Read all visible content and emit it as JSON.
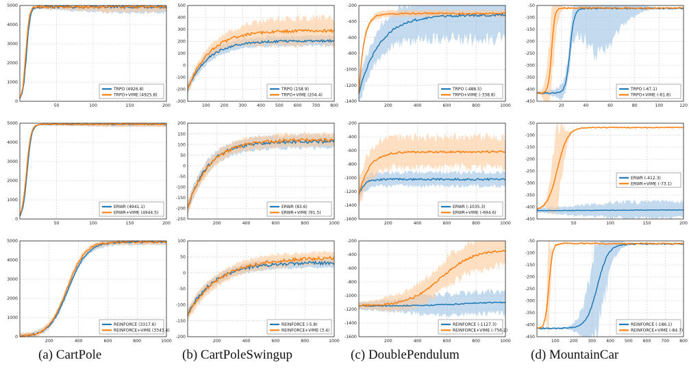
{
  "captions": [
    "(a) CartPole",
    "(b) CartPoleSwingup",
    "(c) DoublePendulum",
    "(d) MountainCar"
  ],
  "style": {
    "base_color": "#1f77b4",
    "vime_color": "#ff7f0e",
    "base_band": "#9cc3e4",
    "vime_band": "#ffc99a"
  },
  "chart_data": [
    {
      "type": "line",
      "panel": "CartPole / TRPO",
      "shape": "sig",
      "ylim": [
        0,
        5000
      ],
      "xlim": [
        0,
        200
      ],
      "yticks": [
        0,
        1000,
        2000,
        3000,
        4000,
        5000
      ],
      "xticks": [
        50,
        100,
        150,
        200
      ],
      "ytick_labels": [
        "0",
        "1000",
        "2000",
        "3000",
        "4000",
        "5000"
      ],
      "xtick_labels": [
        "50",
        "100",
        "150",
        "200"
      ],
      "grid": true,
      "legend": "bottom-right",
      "series": [
        {
          "name": "TRPO (4926.8)",
          "start": 0,
          "end": 4927,
          "mid": 9,
          "width": 2.5,
          "noise": 70,
          "band": 300,
          "band_start": 0.15
        },
        {
          "name": "TRPO+VIME (4925.8)",
          "start": 0,
          "end": 4926,
          "mid": 8,
          "width": 2.3,
          "noise": 70,
          "band": 260,
          "band_start": 0.15
        }
      ]
    },
    {
      "type": "line",
      "panel": "CartPoleSwingup / TRPO",
      "shape": "log",
      "ylim": [
        -300,
        500
      ],
      "xlim": [
        0,
        800
      ],
      "yticks": [
        -300,
        -200,
        -100,
        0,
        100,
        200,
        300,
        400,
        500
      ],
      "xticks": [
        100,
        200,
        300,
        400,
        500,
        600,
        700,
        800
      ],
      "ytick_labels": [
        "-300",
        "-200",
        "-100",
        "0",
        "100",
        "200",
        "300",
        "400",
        "500"
      ],
      "xtick_labels": [
        "100",
        "200",
        "300",
        "400",
        "500",
        "600",
        "700",
        "800"
      ],
      "grid": true,
      "legend": "bottom-right",
      "series": [
        {
          "name": "TRPO (158.9)",
          "start": -200,
          "end": 205,
          "tau": 110,
          "noise": 9,
          "band": 40
        },
        {
          "name": "TRPO+VIME (204.4)",
          "start": -200,
          "end": 290,
          "tau": 120,
          "noise": 12,
          "band": 110,
          "band_start": 0.3
        }
      ]
    },
    {
      "type": "line",
      "panel": "DoublePendulum / TRPO",
      "shape": "log",
      "ylim": [
        -1400,
        -200
      ],
      "xlim": [
        0,
        1000
      ],
      "yticks": [
        -1400,
        -1200,
        -1000,
        -800,
        -600,
        -400,
        -200
      ],
      "xticks": [
        200,
        400,
        600,
        800,
        1000
      ],
      "ytick_labels": [
        "-1400",
        "-1200",
        "-1000",
        "-800",
        "-600",
        "-400",
        "-200"
      ],
      "xtick_labels": [
        "200",
        "400",
        "600",
        "800",
        "1000"
      ],
      "grid": true,
      "legend": "bottom-right",
      "series": [
        {
          "name": "TRPO (-488.5)",
          "start": -1300,
          "end": -320,
          "tau": 140,
          "noise": 15,
          "band": 300,
          "band_start": 0.5
        },
        {
          "name": "TRPO+VIME (-338.8)",
          "start": -1300,
          "end": -300,
          "tau": 35,
          "noise": 10,
          "band": 40
        }
      ]
    },
    {
      "type": "line",
      "panel": "MountainCar / TRPO",
      "shape": "sig",
      "ylim": [
        -450,
        -50
      ],
      "xlim": [
        0,
        120
      ],
      "yticks": [
        -450,
        -400,
        -350,
        -300,
        -250,
        -200,
        -150,
        -100,
        -50
      ],
      "xticks": [
        20,
        40,
        60,
        80,
        100,
        120
      ],
      "ytick_labels": [
        "-450",
        "-400",
        "-350",
        "-300",
        "-250",
        "-200",
        "-150",
        "-100",
        "-50"
      ],
      "xtick_labels": [
        "20",
        "40",
        "60",
        "80",
        "100",
        "120"
      ],
      "grid": true,
      "legend": "bottom-right",
      "series": [
        {
          "name": "TRPO (-67.1)",
          "start": -415,
          "end": -62,
          "mid": 27,
          "width": 1.8,
          "noise": 3,
          "band": 170,
          "band_mid": 50,
          "band_width": 22
        },
        {
          "name": "TRPO+VIME (-61.8)",
          "start": -415,
          "end": -61,
          "mid": 12,
          "width": 1.3,
          "noise": 3,
          "band": 150,
          "band_mid": 12,
          "band_width": 5
        }
      ]
    },
    {
      "type": "line",
      "panel": "CartPole / ERWR",
      "shape": "sig",
      "ylim": [
        0,
        5000
      ],
      "xlim": [
        0,
        200
      ],
      "yticks": [
        0,
        1000,
        2000,
        3000,
        4000,
        5000
      ],
      "xticks": [
        50,
        100,
        150,
        200
      ],
      "ytick_labels": [
        "0",
        "1000",
        "2000",
        "3000",
        "4000",
        "5000"
      ],
      "xtick_labels": [
        "50",
        "100",
        "150",
        "200"
      ],
      "grid": true,
      "legend": "bottom-right",
      "series": [
        {
          "name": "ERWR (4941.1)",
          "start": 0,
          "end": 4941,
          "mid": 10,
          "width": 3,
          "noise": 25,
          "band": 120,
          "band_start": 0.15
        },
        {
          "name": "ERWR+VIME (4944.5)",
          "start": 0,
          "end": 4945,
          "mid": 9,
          "width": 3,
          "noise": 25,
          "band": 120,
          "band_start": 0.15
        }
      ]
    },
    {
      "type": "line",
      "panel": "CartPoleSwingup / ERWR",
      "shape": "log",
      "ylim": [
        -250,
        200
      ],
      "xlim": [
        0,
        1000
      ],
      "yticks": [
        -250,
        -200,
        -150,
        -100,
        -50,
        0,
        50,
        100,
        150,
        200
      ],
      "xticks": [
        200,
        400,
        600,
        800,
        1000
      ],
      "ytick_labels": [
        "-250",
        "-200",
        "-150",
        "-100",
        "-50",
        "0",
        "50",
        "100",
        "150",
        "200"
      ],
      "xtick_labels": [
        "200",
        "400",
        "600",
        "800",
        "1000"
      ],
      "grid": true,
      "legend": "bottom-right",
      "series": [
        {
          "name": "ERWR (83.6)",
          "start": -200,
          "end": 115,
          "tau": 140,
          "noise": 8,
          "band": 30
        },
        {
          "name": "ERWR+VIME (91.5)",
          "start": -200,
          "end": 122,
          "tau": 150,
          "noise": 8,
          "band": 30
        }
      ]
    },
    {
      "type": "line",
      "panel": "DoublePendulum / ERWR",
      "shape": "log",
      "ylim": [
        -1600,
        -200
      ],
      "xlim": [
        0,
        1000
      ],
      "yticks": [
        -1600,
        -1400,
        -1200,
        -1000,
        -800,
        -600,
        -400,
        -200
      ],
      "xticks": [
        200,
        400,
        600,
        800,
        1000
      ],
      "ytick_labels": [
        "-1600",
        "-1400",
        "-1200",
        "-1000",
        "-800",
        "-600",
        "-400",
        "-200"
      ],
      "xtick_labels": [
        "200",
        "400",
        "600",
        "800",
        "1000"
      ],
      "grid": true,
      "legend": "bottom-right",
      "series": [
        {
          "name": "ERWR (-1035.3)",
          "start": -1250,
          "end": -1020,
          "tau": 35,
          "noise": 14,
          "band": 100
        },
        {
          "name": "ERWR+VIME (-694.6)",
          "start": -1250,
          "end": -620,
          "tau": 70,
          "noise": 14,
          "band": 220
        }
      ]
    },
    {
      "type": "line",
      "panel": "MountainCar / ERWR",
      "shape": "sig",
      "ylim": [
        -450,
        -50
      ],
      "xlim": [
        0,
        200
      ],
      "yticks": [
        -450,
        -400,
        -350,
        -300,
        -250,
        -200,
        -150,
        -100,
        -50
      ],
      "xticks": [
        50,
        100,
        150,
        200
      ],
      "ytick_labels": [
        "-450",
        "-400",
        "-350",
        "-300",
        "-250",
        "-200",
        "-150",
        "-100",
        "-50"
      ],
      "xtick_labels": [
        "50",
        "100",
        "150",
        "200"
      ],
      "grid": true,
      "legend": "right",
      "series": [
        {
          "name": "ERWR (-412.3)",
          "start": -415,
          "end": -412,
          "mid": 100,
          "width": 40,
          "noise": 1,
          "band": 35,
          "band_start": 0.25
        },
        {
          "name": "ERWR+VIME (-73.1)",
          "start": -415,
          "end": -68,
          "mid": 28,
          "width": 7,
          "noise": 2,
          "band": 160,
          "band_mid": 28,
          "band_width": 10
        }
      ]
    },
    {
      "type": "line",
      "panel": "CartPole / REINFORCE",
      "shape": "sig",
      "ylim": [
        0,
        5000
      ],
      "xlim": [
        0,
        1000
      ],
      "yticks": [
        0,
        1000,
        2000,
        3000,
        4000,
        5000
      ],
      "xticks": [
        200,
        400,
        600,
        800,
        1000
      ],
      "ytick_labels": [
        "0",
        "1000",
        "2000",
        "3000",
        "4000",
        "5000"
      ],
      "xtick_labels": [
        "200",
        "400",
        "600",
        "800",
        "1000"
      ],
      "grid": true,
      "legend": "bottom-right",
      "series": [
        {
          "name": "REINFORCE (3317.6)",
          "start": 0,
          "end": 4950,
          "mid": 330,
          "width": 65,
          "noise": 55,
          "band": 150
        },
        {
          "name": "REINFORCE+VIME (3343.4)",
          "start": 0,
          "end": 4960,
          "mid": 320,
          "width": 62,
          "noise": 55,
          "band": 150
        }
      ]
    },
    {
      "type": "line",
      "panel": "CartPoleSwingup / REINFORCE",
      "shape": "log",
      "ylim": [
        -200,
        100
      ],
      "xlim": [
        0,
        1000
      ],
      "yticks": [
        -200,
        -150,
        -100,
        -50,
        0,
        50,
        100
      ],
      "xticks": [
        200,
        400,
        600,
        800,
        1000
      ],
      "ytick_labels": [
        "-200",
        "-150",
        "-100",
        "-50",
        "0",
        "50",
        "100"
      ],
      "xtick_labels": [
        "200",
        "400",
        "600",
        "800",
        "1000"
      ],
      "grid": true,
      "legend": "bottom-right",
      "series": [
        {
          "name": "REINFORCE (-5.8)",
          "start": -130,
          "end": 32,
          "tau": 180,
          "noise": 5,
          "band": 14
        },
        {
          "name": "REINFORCE+VIME (3.4)",
          "start": -130,
          "end": 48,
          "tau": 220,
          "noise": 5,
          "band": 20
        }
      ]
    },
    {
      "type": "line",
      "panel": "DoublePendulum / REINFORCE",
      "shape": "sig",
      "ylim": [
        -1600,
        -200
      ],
      "xlim": [
        0,
        1000
      ],
      "yticks": [
        -1600,
        -1400,
        -1200,
        -1000,
        -800,
        -600,
        -400,
        -200
      ],
      "xticks": [
        200,
        400,
        600,
        800,
        1000
      ],
      "ytick_labels": [
        "-1600",
        "-1400",
        "-1200",
        "-1000",
        "-800",
        "-600",
        "-400",
        "-200"
      ],
      "xtick_labels": [
        "200",
        "400",
        "600",
        "800",
        "1000"
      ],
      "grid": true,
      "legend": "bottom-right",
      "series": [
        {
          "name": "REINFORCE (-1127.3)",
          "start": -1150,
          "end": -1090,
          "mid": 700,
          "width": 150,
          "noise": 8,
          "band": 160,
          "band_start": 0.3
        },
        {
          "name": "REINFORCE+VIME (-756.2)",
          "start": -1150,
          "end": -330,
          "mid": 560,
          "width": 110,
          "noise": 15,
          "band": 220,
          "band_start": 0.2
        }
      ]
    },
    {
      "type": "line",
      "panel": "MountainCar / REINFORCE",
      "shape": "sig",
      "ylim": [
        -450,
        -50
      ],
      "xlim": [
        0,
        800
      ],
      "yticks": [
        -450,
        -400,
        -350,
        -300,
        -250,
        -200,
        -150,
        -100,
        -50
      ],
      "xticks": [
        100,
        200,
        300,
        400,
        500,
        600,
        700,
        800
      ],
      "ytick_labels": [
        "-450",
        "-400",
        "-350",
        "-300",
        "-250",
        "-200",
        "-150",
        "-100",
        "-50"
      ],
      "xtick_labels": [
        "100",
        "200",
        "300",
        "400",
        "500",
        "600",
        "700",
        "800"
      ],
      "grid": true,
      "legend": "bottom-right",
      "series": [
        {
          "name": "REINFORCE (-186.1)",
          "start": -415,
          "end": -62,
          "mid": 330,
          "width": 30,
          "noise": 3,
          "band": 190,
          "band_mid": 330,
          "band_width": 80
        },
        {
          "name": "REINFORCE+VIME (-84.7)",
          "start": -415,
          "end": -61,
          "mid": 65,
          "width": 10,
          "noise": 3,
          "band": 170,
          "band_mid": 65,
          "band_width": 12
        }
      ]
    }
  ]
}
